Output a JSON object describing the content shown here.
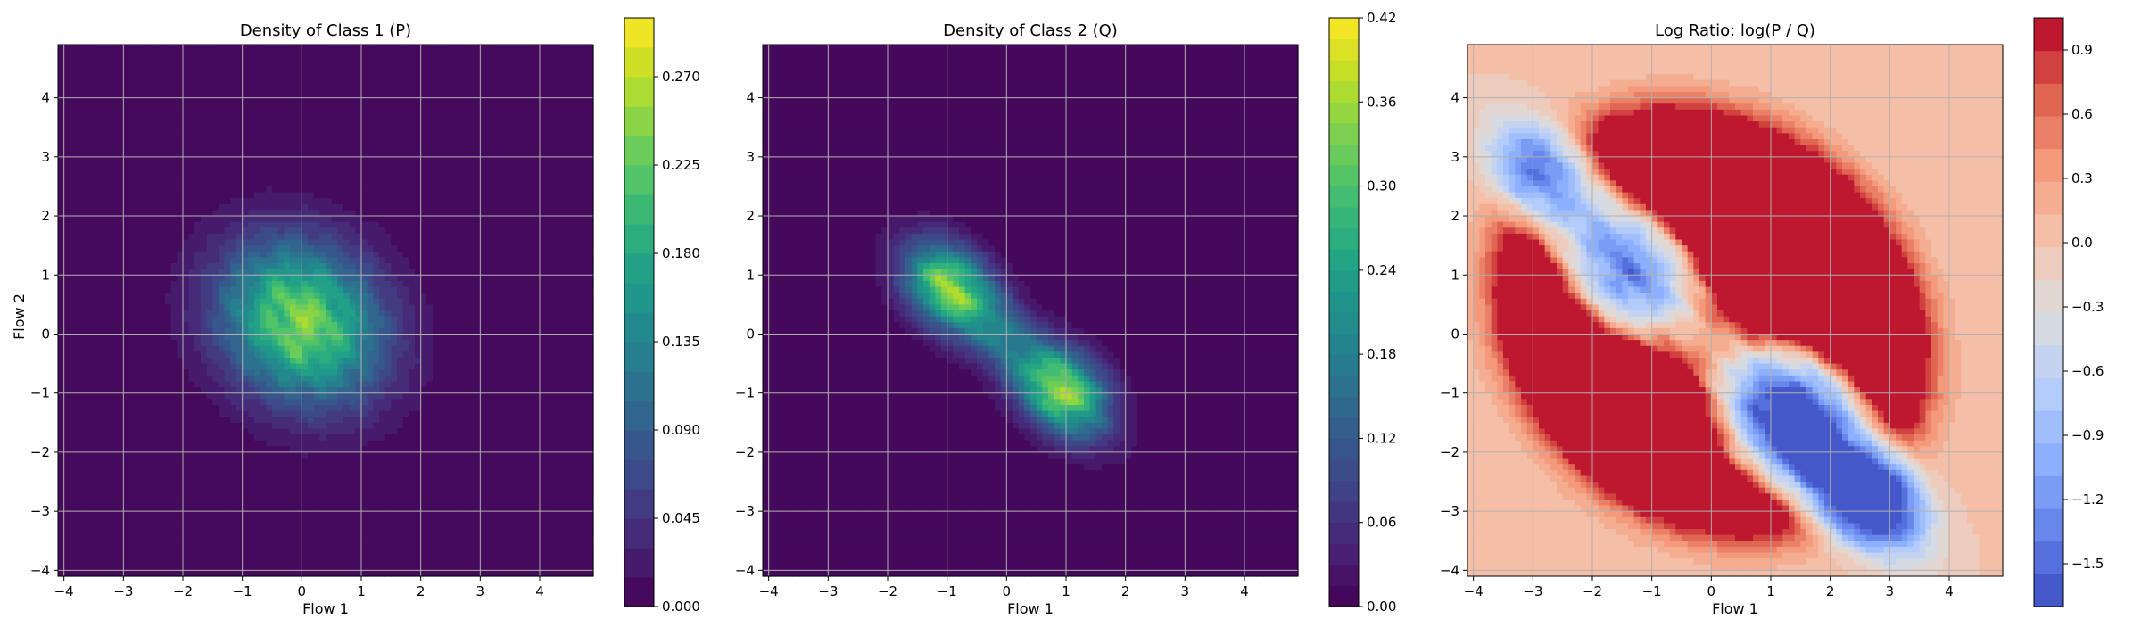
{
  "chart_data": [
    {
      "type": "heatmap",
      "title": "Density of Class 1 (P)",
      "xlabel": "Flow 1",
      "ylabel": "Flow 2",
      "xlim": [
        -4.1,
        4.9
      ],
      "ylim": [
        -4.1,
        4.9
      ],
      "xticks": [
        -4,
        -3,
        -2,
        -1,
        0,
        1,
        2,
        3,
        4
      ],
      "yticks": [
        -4,
        -3,
        -2,
        -1,
        0,
        1,
        2,
        3,
        4
      ],
      "grid": true,
      "colormap": "viridis",
      "colorbar": {
        "min": 0.0,
        "max": 0.3,
        "ticks": [
          0.0,
          0.045,
          0.09,
          0.135,
          0.18,
          0.225,
          0.27
        ],
        "tick_labels": [
          "0.000",
          "0.045",
          "0.090",
          "0.135",
          "0.180",
          "0.225",
          "0.270"
        ]
      },
      "components": [
        {
          "mean": [
            0.0,
            0.2
          ],
          "cov": [
            [
              0.9,
              -0.15
            ],
            [
              -0.15,
              0.9
            ]
          ],
          "weight": 1.0
        }
      ],
      "peak_value": 0.24
    },
    {
      "type": "heatmap",
      "title": "Density of Class 2 (Q)",
      "xlabel": "Flow 1",
      "ylabel": "",
      "xlim": [
        -4.1,
        4.9
      ],
      "ylim": [
        -4.1,
        4.9
      ],
      "xticks": [
        -4,
        -3,
        -2,
        -1,
        0,
        1,
        2,
        3,
        4
      ],
      "yticks": [
        -4,
        -3,
        -2,
        -1,
        0,
        1,
        2,
        3,
        4
      ],
      "grid": true,
      "colormap": "viridis",
      "colorbar": {
        "min": 0.0,
        "max": 0.42,
        "ticks": [
          0.0,
          0.06,
          0.12,
          0.18,
          0.24,
          0.3,
          0.36,
          0.42
        ],
        "tick_labels": [
          "0.00",
          "0.06",
          "0.12",
          "0.18",
          "0.24",
          "0.30",
          "0.36",
          "0.42"
        ]
      },
      "components": [
        {
          "mean": [
            -1.0,
            0.8
          ],
          "cov": [
            [
              0.25,
              -0.05
            ],
            [
              -0.05,
              0.25
            ]
          ],
          "weight": 1.0
        },
        {
          "mean": [
            1.0,
            -1.0
          ],
          "cov": [
            [
              0.25,
              -0.05
            ],
            [
              -0.05,
              0.25
            ]
          ],
          "weight": 1.0
        },
        {
          "mean": [
            0.0,
            -0.1
          ],
          "cov": [
            [
              0.9,
              -0.75
            ],
            [
              -0.75,
              0.9
            ]
          ],
          "weight": 1.2
        }
      ],
      "peak_value": 0.36
    },
    {
      "type": "heatmap",
      "title": "Log Ratio: log(P / Q)",
      "xlabel": "Flow 1",
      "ylabel": "",
      "xlim": [
        -4.1,
        4.9
      ],
      "ylim": [
        -4.1,
        4.9
      ],
      "xticks": [
        -4,
        -3,
        -2,
        -1,
        0,
        1,
        2,
        3,
        4
      ],
      "yticks": [
        -4,
        -3,
        -2,
        -1,
        0,
        1,
        2,
        3,
        4
      ],
      "grid": true,
      "colormap": "coolwarm",
      "colorbar": {
        "min": -1.7,
        "max": 1.05,
        "ticks": [
          -1.5,
          -1.2,
          -0.9,
          -0.6,
          -0.3,
          0.0,
          0.3,
          0.6,
          0.9
        ],
        "tick_labels": [
          "−1.5",
          "−1.2",
          "−0.9",
          "−0.6",
          "−0.3",
          "0.0",
          "0.3",
          "0.6",
          "0.9"
        ]
      }
    }
  ]
}
